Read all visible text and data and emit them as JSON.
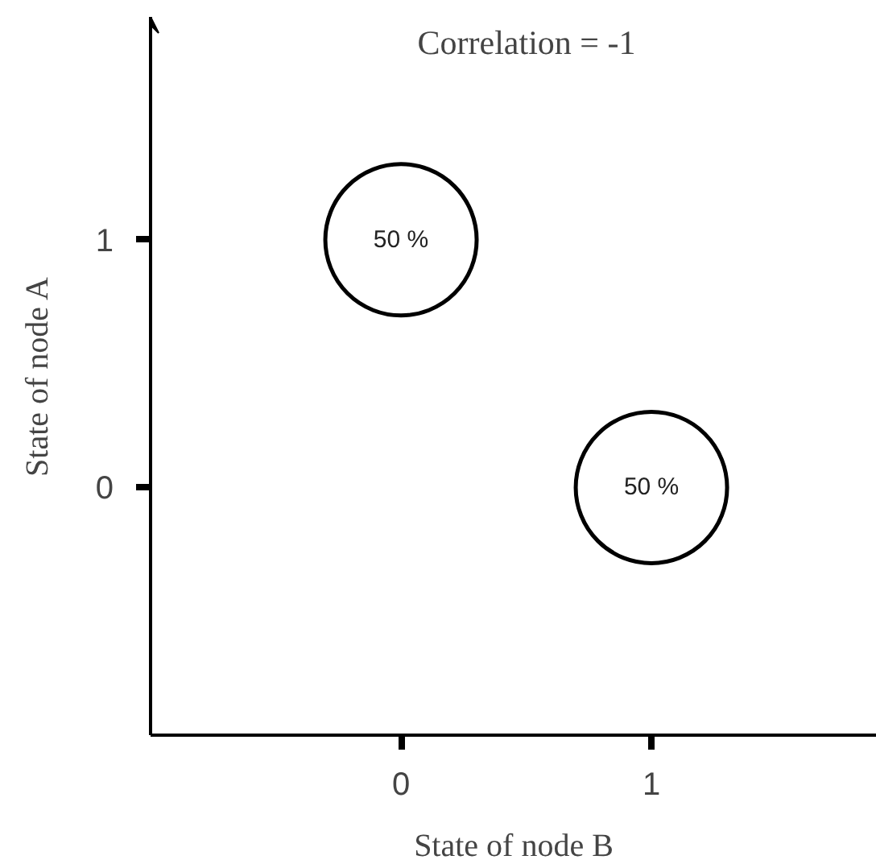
{
  "chart_data": {
    "type": "bubble",
    "title": "Correlation = -1",
    "xlabel": "State of node B",
    "ylabel": "State of node A",
    "x": [
      0,
      1
    ],
    "values": [
      1,
      0
    ],
    "sizes": [
      1,
      1
    ],
    "color": "#000000",
    "annotations": [
      {
        "text": "50 %",
        "x": 0,
        "y": 1
      },
      {
        "text": "50 %",
        "x": 1,
        "y": 0
      }
    ],
    "xlim": [
      -1,
      1.9
    ],
    "ylim": [
      -1,
      1.9
    ],
    "xticks": [
      0,
      1
    ],
    "yticks": [
      0,
      1
    ],
    "grid": false,
    "marker": "circle"
  }
}
